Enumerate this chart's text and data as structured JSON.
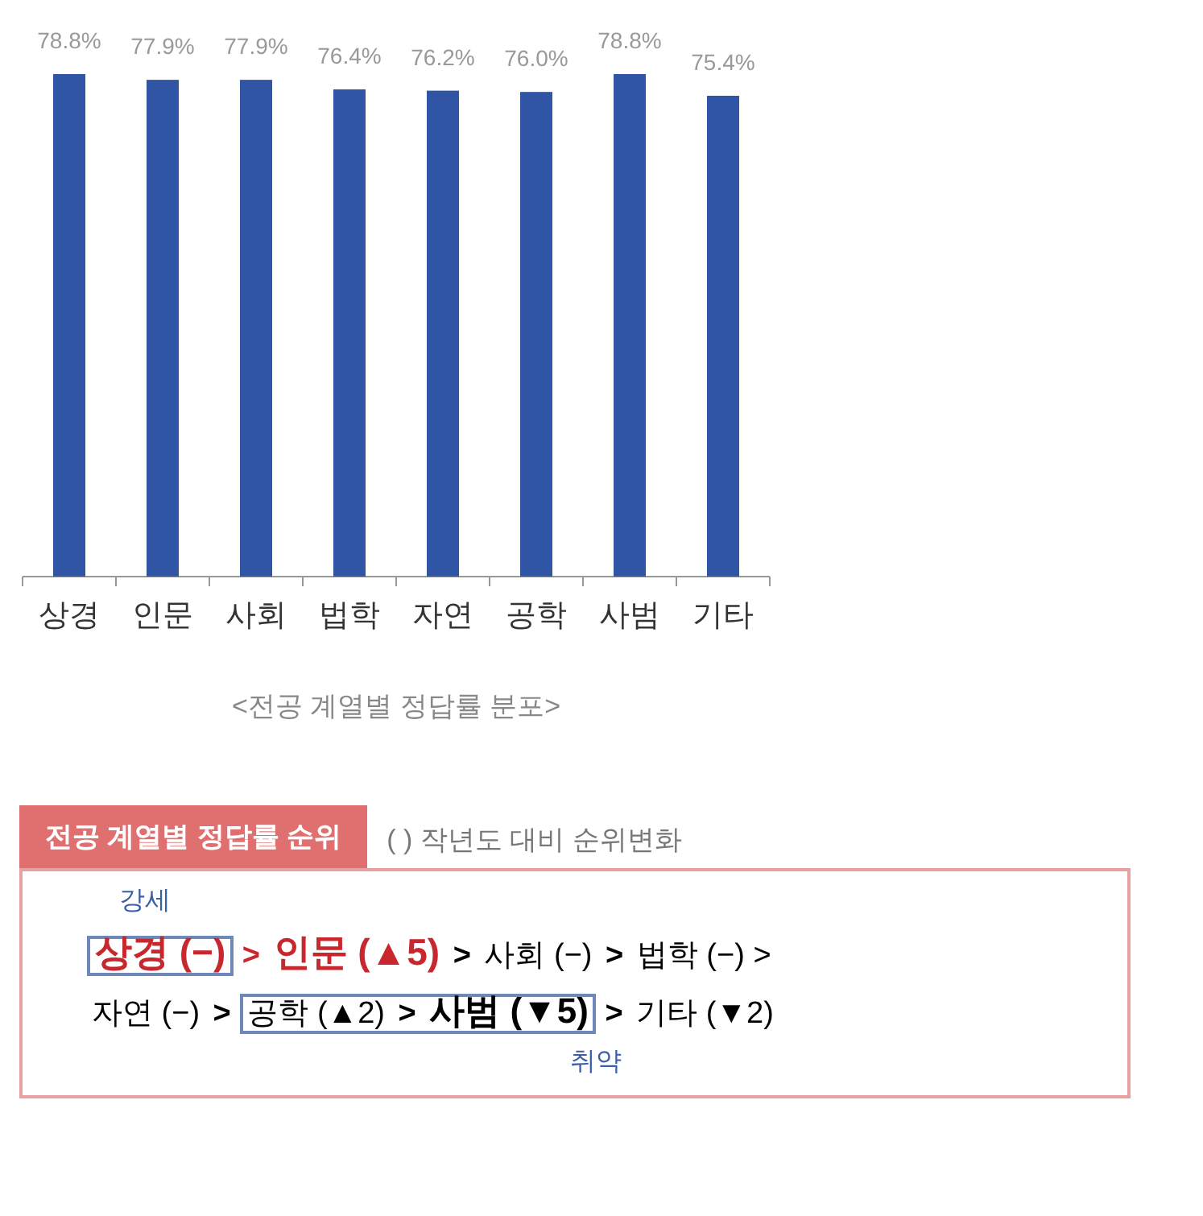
{
  "chart_data": [
    {
      "type": "bar",
      "categories": [
        "상경",
        "인문",
        "사회",
        "법학",
        "자연",
        "공학",
        "사범",
        "기타"
      ],
      "values": [
        78.8,
        77.9,
        77.9,
        76.4,
        76.2,
        76.0,
        78.8,
        75.4
      ],
      "value_labels": [
        "78.8%",
        "77.9%",
        "77.9%",
        "76.4%",
        "76.2%",
        "76.0%",
        "78.8%",
        "75.4%"
      ],
      "color": "#2f55a4",
      "annotations": [
        "<전공 계열별 정답률 분포>"
      ]
    },
    {
      "type": "other",
      "title": "전공 계열별 정답률 순위",
      "subtitle": "( ) 작년도 대비 순위변화",
      "annotations": [
        "강세",
        "상경 (−) > 인문 (▲5) > 사회 (−) > 법학 (−) >",
        "자연 (−) > 공학 (▲2) > 사범 (▼5) > 기타 (▼2)",
        "취약"
      ]
    }
  ]
}
